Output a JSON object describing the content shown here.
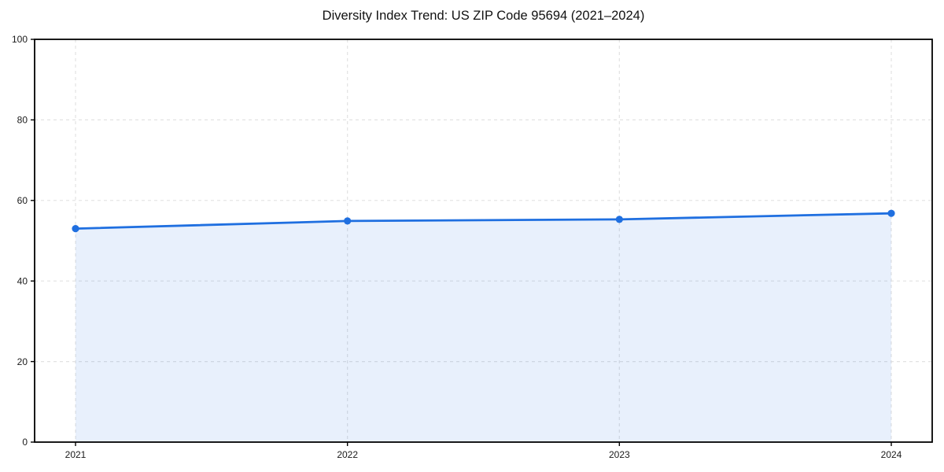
{
  "figure": {
    "background": "#ffffff"
  },
  "chart_data": {
    "type": "area",
    "title": "Diversity Index Trend: US ZIP Code 95694 (2021–2024)",
    "x": [
      2021,
      2022,
      2023,
      2024
    ],
    "xtick_labels": [
      "2021",
      "2022",
      "2023",
      "2024"
    ],
    "series": [
      {
        "name": "Diversity Index",
        "values": [
          53.0,
          54.9,
          55.3,
          56.8
        ]
      }
    ],
    "xlabel": "",
    "ylabel": "",
    "ylim": [
      0,
      100
    ],
    "yticks": [
      0,
      20,
      40,
      60,
      80,
      100
    ],
    "ytick_labels": [
      "0",
      "20",
      "40",
      "60",
      "80",
      "100"
    ],
    "grid": true,
    "grid_style": "dashed",
    "legend_position": "none",
    "colors": {
      "line": "#1f6fe0",
      "marker": "#1f6fe0",
      "fill": "rgba(31,111,224,0.10)",
      "grid": "#e2e2e2",
      "axis": "#000000",
      "tick_text": "#1a1a1a",
      "title_text": "#111111"
    }
  }
}
